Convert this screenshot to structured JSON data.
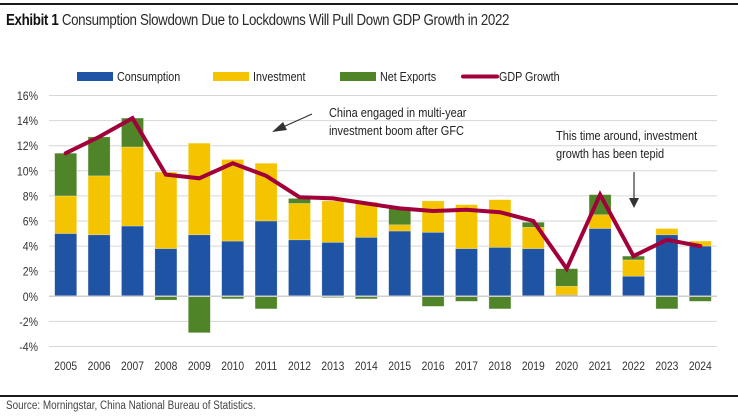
{
  "header": {
    "exhibit": "Exhibit 1",
    "title": "Consumption Slowdown Due to Lockdowns Will Pull Down GDP Growth in 2022"
  },
  "footer": {
    "source": "Source: Morningstar, China National Bureau of Statistics."
  },
  "colors": {
    "consumption": "#1f53a4",
    "investment": "#f5c400",
    "net_exports": "#4f8429",
    "gdp_growth": "#a1003a",
    "grid": "#d6d6d6",
    "axis_text": "#333333"
  },
  "chart_data": {
    "type": "bar",
    "stacked": true,
    "title": "Consumption Slowdown Due to Lockdowns Will Pull Down GDP Growth in 2022",
    "xlabel": "",
    "ylabel": "",
    "ylim": [
      -4,
      16
    ],
    "yticks": [
      -4,
      -2,
      0,
      2,
      4,
      6,
      8,
      10,
      12,
      14,
      16
    ],
    "ytick_format": "percent",
    "grid": true,
    "legend_position": "top",
    "categories": [
      "2005",
      "2006",
      "2007",
      "2008",
      "2009",
      "2010",
      "2011",
      "2012",
      "2013",
      "2014",
      "2015",
      "2016",
      "2017",
      "2018",
      "2019",
      "2020",
      "2021",
      "2022",
      "2023",
      "2024"
    ],
    "series": [
      {
        "name": "Consumption",
        "type": "bar",
        "color_key": "consumption",
        "values": [
          5.0,
          4.9,
          5.6,
          3.8,
          4.9,
          4.4,
          6.0,
          4.5,
          4.3,
          4.7,
          5.2,
          5.1,
          3.8,
          3.9,
          3.8,
          0.1,
          5.4,
          1.6,
          4.9,
          4.0
        ]
      },
      {
        "name": "Investment",
        "type": "bar",
        "color_key": "investment",
        "values": [
          3.0,
          4.7,
          6.3,
          6.1,
          7.3,
          6.5,
          4.6,
          2.9,
          3.3,
          2.8,
          0.5,
          2.5,
          3.5,
          3.8,
          1.7,
          0.7,
          1.1,
          1.3,
          0.5,
          0.4
        ]
      },
      {
        "name": "Net Exports",
        "type": "bar",
        "color_key": "net_exports",
        "values": [
          3.4,
          3.1,
          2.3,
          -0.3,
          -2.9,
          -0.2,
          -1.0,
          0.4,
          -0.1,
          -0.2,
          1.3,
          -0.8,
          -0.4,
          -1.0,
          0.4,
          1.4,
          1.6,
          0.3,
          -1.0,
          -0.4
        ]
      },
      {
        "name": "GDP Growth",
        "type": "line",
        "color_key": "gdp_growth",
        "values": [
          11.4,
          12.7,
          14.2,
          9.7,
          9.4,
          10.6,
          9.6,
          7.9,
          7.8,
          7.4,
          7.0,
          6.8,
          6.9,
          6.7,
          6.0,
          2.2,
          8.1,
          3.2,
          4.5,
          4.0
        ]
      }
    ],
    "annotations": [
      {
        "text_lines": [
          "China engaged in multi-year",
          "investment boom after GFC"
        ],
        "arrow_direction": "down-left"
      },
      {
        "text_lines": [
          "This time around, investment",
          "growth has been tepid"
        ],
        "arrow_direction": "down",
        "points_to": "2022"
      }
    ]
  }
}
